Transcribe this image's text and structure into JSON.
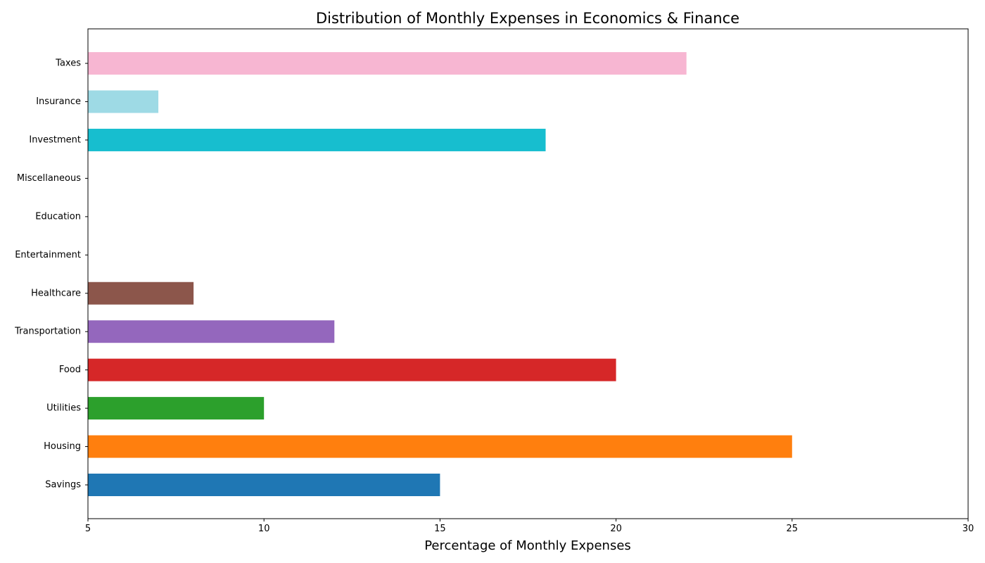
{
  "chart_data": {
    "type": "bar",
    "orientation": "horizontal",
    "title": "Distribution of Monthly Expenses in Economics & Finance",
    "xlabel": "Percentage of Monthly Expenses",
    "ylabel": "",
    "xlim": [
      5,
      30
    ],
    "xticks": [
      5,
      10,
      15,
      20,
      25,
      30
    ],
    "grid": false,
    "categories": [
      "Savings",
      "Housing",
      "Utilities",
      "Food",
      "Transportation",
      "Healthcare",
      "Entertainment",
      "Education",
      "Miscellaneous",
      "Investment",
      "Insurance",
      "Taxes"
    ],
    "values": [
      15,
      25,
      10,
      20,
      12,
      8,
      5,
      5,
      5,
      18,
      7,
      22
    ],
    "colors": [
      "#1f77b4",
      "#ff7f0e",
      "#2ca02c",
      "#d62728",
      "#9467bd",
      "#8c564b",
      "#e377c2",
      "#7f7f7f",
      "#bcbd22",
      "#17becf",
      "#9edae5",
      "#f7b6d2"
    ]
  }
}
